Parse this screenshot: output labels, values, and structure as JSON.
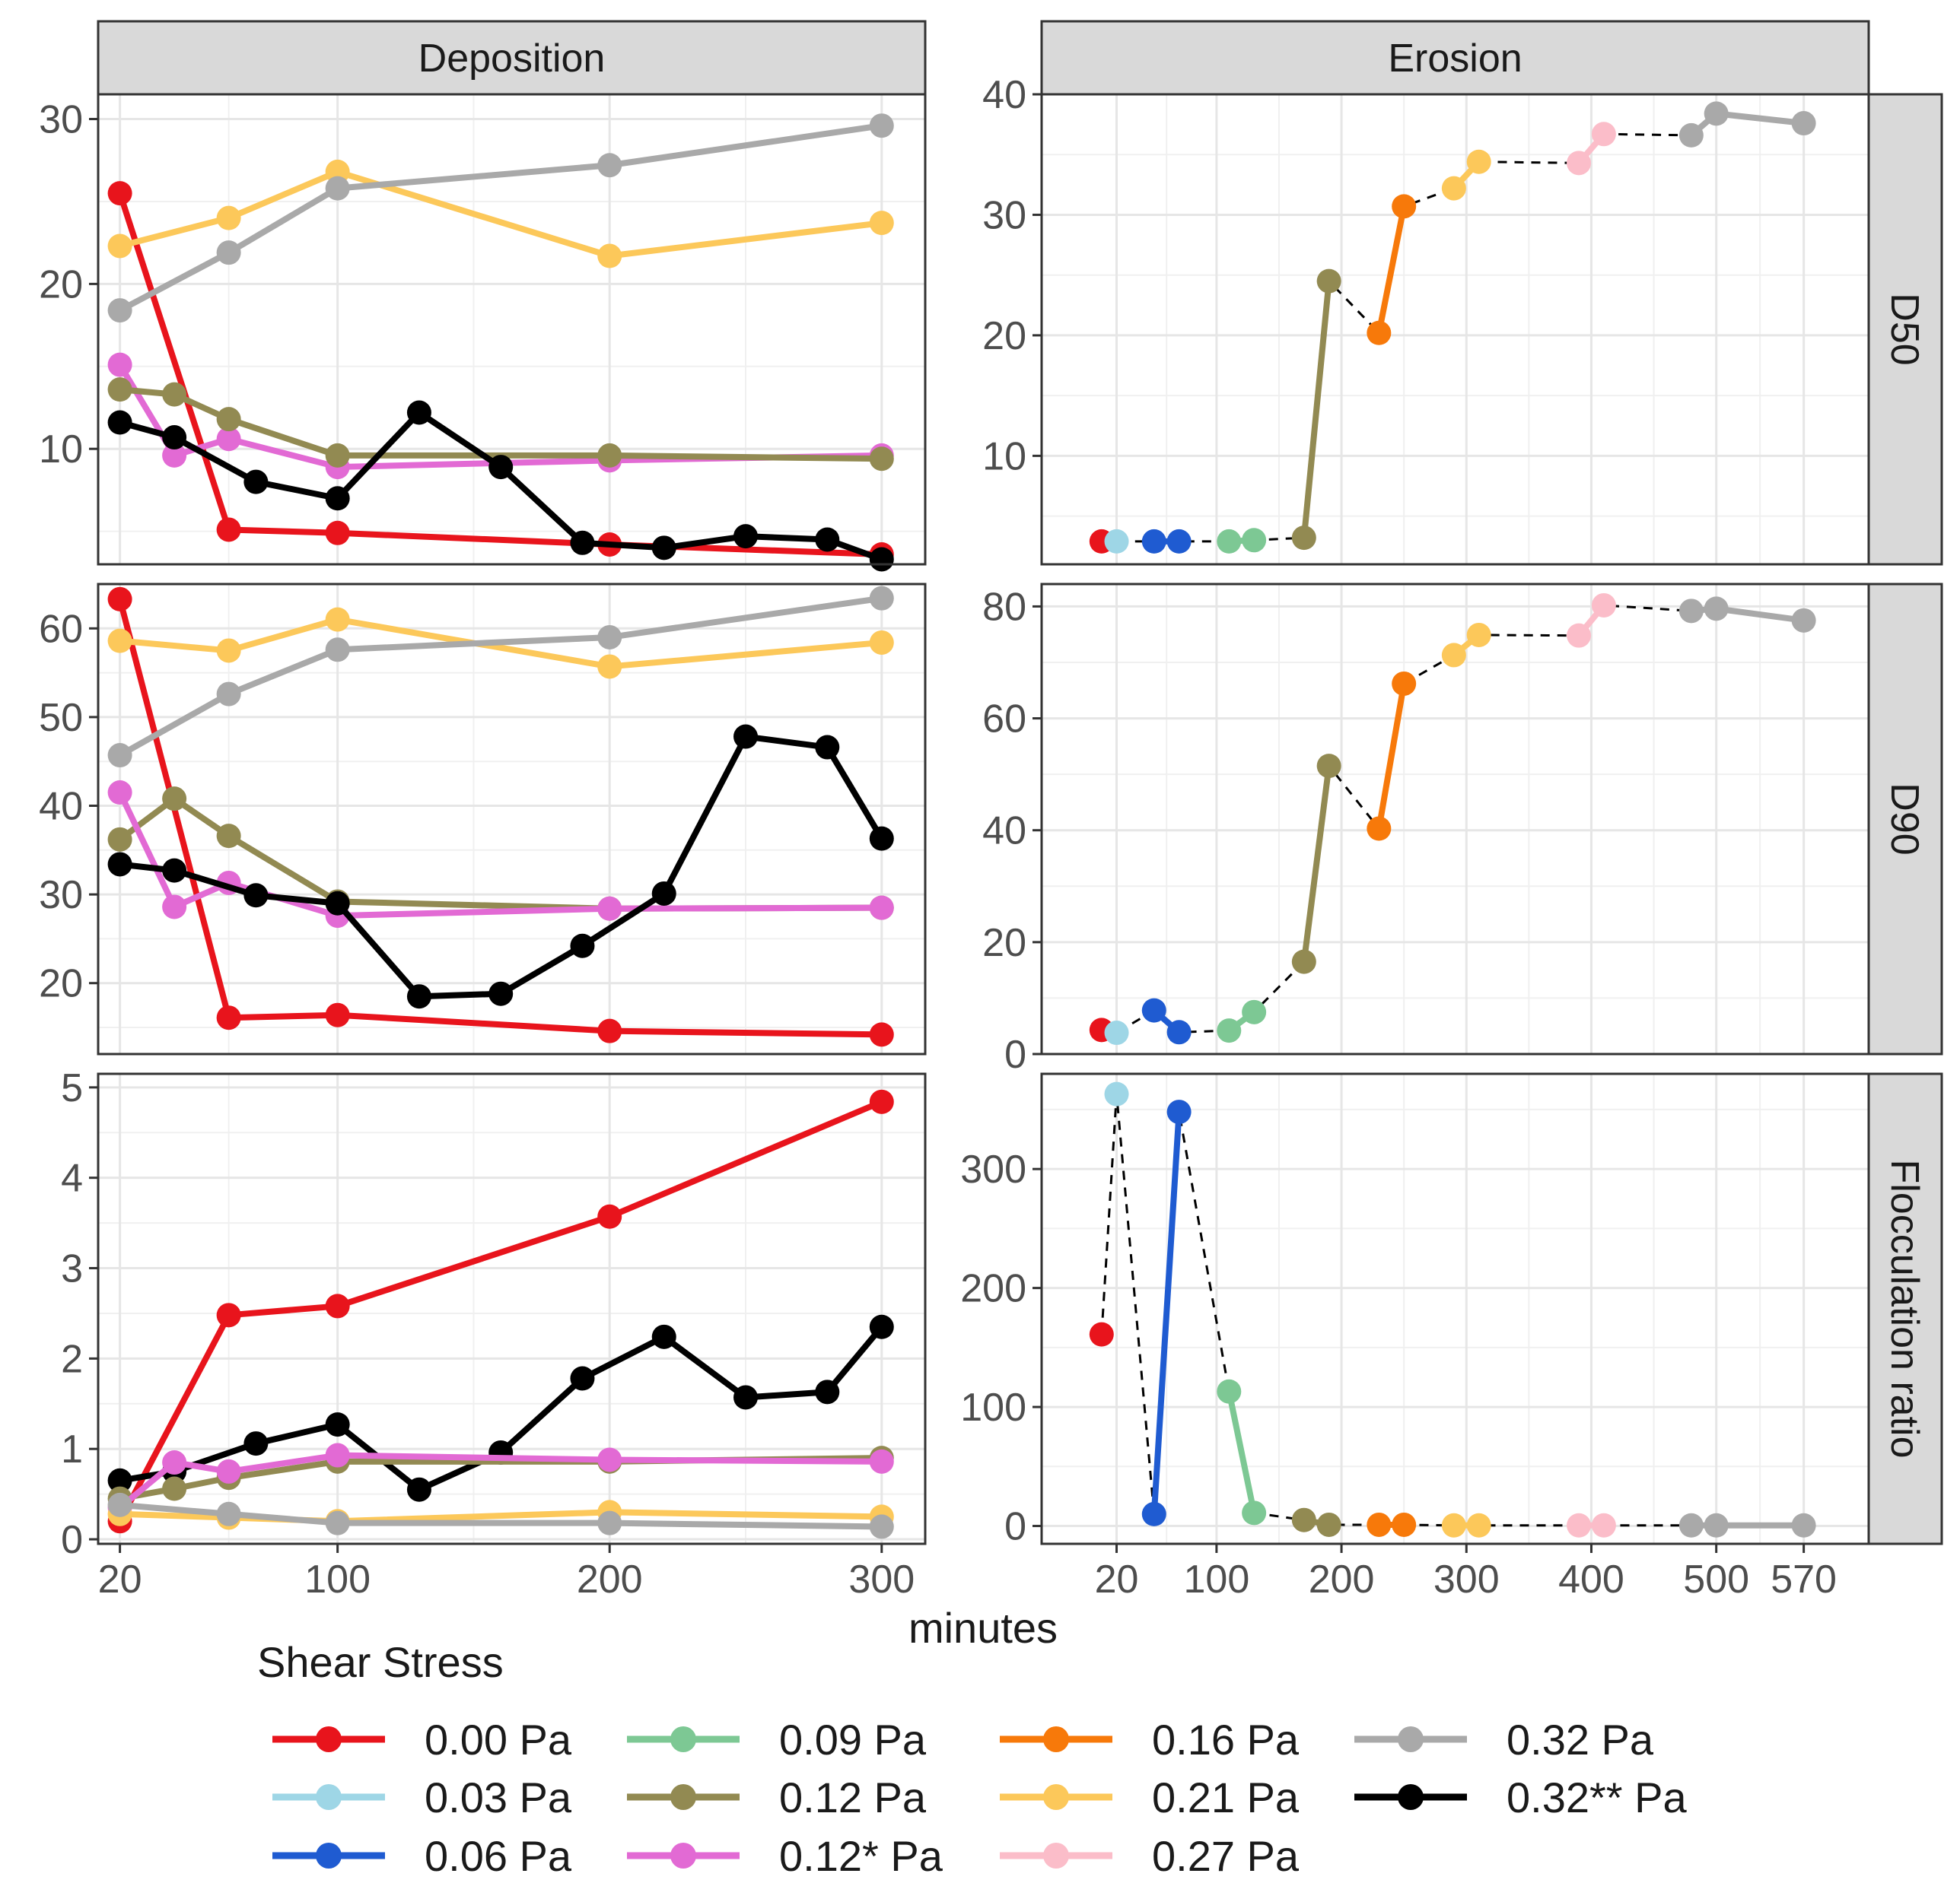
{
  "chart_data": {
    "type": "line",
    "xlabel": "minutes",
    "columns": [
      "Deposition",
      "Erosion"
    ],
    "rows": [
      "D50",
      "D90",
      "Flocculation ratio"
    ],
    "legend": {
      "title": "Shear Stress",
      "entries": [
        {
          "label": "0.00 Pa",
          "color": "#e8141c"
        },
        {
          "label": "0.03 Pa",
          "color": "#9ed6e6"
        },
        {
          "label": "0.06 Pa",
          "color": "#1f5bd1"
        },
        {
          "label": "0.09 Pa",
          "color": "#7dc894"
        },
        {
          "label": "0.12 Pa",
          "color": "#928a52"
        },
        {
          "label": "0.12* Pa",
          "color": "#e26ad4"
        },
        {
          "label": "0.16 Pa",
          "color": "#f7790a"
        },
        {
          "label": "0.21 Pa",
          "color": "#fcc85a"
        },
        {
          "label": "0.27 Pa",
          "color": "#fbbdc9"
        },
        {
          "label": "0.32 Pa",
          "color": "#a9a9a9"
        },
        {
          "label": "0.32** Pa",
          "color": "#000000"
        }
      ]
    },
    "deposition": {
      "xlim": [
        12,
        316
      ],
      "xticks": [
        20,
        100,
        200,
        300
      ],
      "panels": {
        "D50": {
          "ylim": [
            3.0,
            31.5
          ],
          "yticks": [
            10,
            20,
            30
          ],
          "series": [
            {
              "name": "0.00 Pa",
              "x": [
                20,
                60,
                100,
                200,
                300
              ],
              "y": [
                25.5,
                5.1,
                4.9,
                4.2,
                3.6
              ]
            },
            {
              "name": "0.21 Pa",
              "x": [
                20,
                60,
                100,
                200,
                300
              ],
              "y": [
                22.3,
                24.0,
                26.8,
                21.7,
                23.7
              ]
            },
            {
              "name": "0.32 Pa",
              "x": [
                20,
                60,
                100,
                200,
                300
              ],
              "y": [
                18.4,
                21.9,
                25.8,
                27.2,
                29.6
              ]
            },
            {
              "name": "0.12* Pa",
              "x": [
                20,
                40,
                60,
                100,
                200,
                300
              ],
              "y": [
                15.1,
                9.6,
                10.6,
                8.9,
                9.3,
                9.6
              ]
            },
            {
              "name": "0.12 Pa",
              "x": [
                20,
                40,
                60,
                100,
                200,
                300
              ],
              "y": [
                13.6,
                13.3,
                11.8,
                9.6,
                9.6,
                9.4
              ]
            },
            {
              "name": "0.32** Pa",
              "x": [
                20,
                40,
                70,
                100,
                130,
                160,
                190,
                220,
                250,
                280,
                300
              ],
              "y": [
                11.6,
                10.7,
                8.0,
                7.0,
                12.2,
                8.9,
                4.3,
                4.0,
                4.7,
                4.5,
                3.3
              ]
            }
          ]
        },
        "D90": {
          "ylim": [
            12,
            65
          ],
          "yticks": [
            20,
            30,
            40,
            50,
            60
          ],
          "series": [
            {
              "name": "0.00 Pa",
              "x": [
                20,
                60,
                100,
                200,
                300
              ],
              "y": [
                63.3,
                16.1,
                16.4,
                14.6,
                14.2
              ]
            },
            {
              "name": "0.21 Pa",
              "x": [
                20,
                60,
                100,
                200,
                300
              ],
              "y": [
                58.6,
                57.5,
                61.0,
                55.7,
                58.4
              ]
            },
            {
              "name": "0.32 Pa",
              "x": [
                20,
                60,
                100,
                200,
                300
              ],
              "y": [
                45.7,
                52.6,
                57.6,
                59.0,
                63.4
              ]
            },
            {
              "name": "0.12 Pa",
              "x": [
                20,
                40,
                60,
                100,
                200,
                300
              ],
              "y": [
                36.2,
                40.8,
                36.6,
                29.2,
                28.4,
                28.5
              ]
            },
            {
              "name": "0.12* Pa",
              "x": [
                20,
                40,
                60,
                100,
                200,
                300
              ],
              "y": [
                41.5,
                28.6,
                31.3,
                27.6,
                28.4,
                28.5
              ]
            },
            {
              "name": "0.32** Pa",
              "x": [
                20,
                40,
                70,
                100,
                130,
                160,
                190,
                220,
                250,
                280,
                300
              ],
              "y": [
                33.4,
                32.7,
                29.9,
                29.0,
                18.5,
                18.8,
                24.2,
                30.1,
                47.8,
                46.6,
                36.3
              ]
            }
          ]
        },
        "Flocculation ratio": {
          "ylim": [
            -0.05,
            5.15
          ],
          "yticks": [
            0,
            1,
            2,
            3,
            4,
            5
          ],
          "series": [
            {
              "name": "0.00 Pa",
              "x": [
                20,
                60,
                100,
                200,
                300
              ],
              "y": [
                0.2,
                2.48,
                2.58,
                3.57,
                4.84
              ]
            },
            {
              "name": "0.32** Pa",
              "x": [
                20,
                40,
                70,
                100,
                130,
                160,
                190,
                220,
                250,
                280,
                300
              ],
              "y": [
                0.65,
                0.75,
                1.06,
                1.27,
                0.55,
                0.96,
                1.78,
                2.24,
                1.57,
                1.63,
                2.35
              ]
            },
            {
              "name": "0.12 Pa",
              "x": [
                20,
                40,
                60,
                100,
                200,
                300
              ],
              "y": [
                0.45,
                0.56,
                0.68,
                0.86,
                0.86,
                0.9
              ]
            },
            {
              "name": "0.12* Pa",
              "x": [
                20,
                40,
                60,
                100,
                200,
                300
              ],
              "y": [
                0.35,
                0.85,
                0.75,
                0.93,
                0.88,
                0.86
              ]
            },
            {
              "name": "0.21 Pa",
              "x": [
                20,
                60,
                100,
                200,
                300
              ],
              "y": [
                0.28,
                0.24,
                0.2,
                0.3,
                0.25
              ]
            },
            {
              "name": "0.32 Pa",
              "x": [
                20,
                60,
                100,
                200,
                300
              ],
              "y": [
                0.38,
                0.28,
                0.18,
                0.18,
                0.14
              ]
            }
          ]
        }
      }
    },
    "erosion": {
      "xlim": [
        -40,
        622
      ],
      "xticks": [
        {
          "label": "20",
          "at": 20
        },
        {
          "label": "100",
          "at": 100
        },
        {
          "label": "200",
          "at": 200
        },
        {
          "label": "300",
          "at": 300
        },
        {
          "label": "400",
          "at": 400
        },
        {
          "label": "500",
          "at": 500
        },
        {
          "label": "570",
          "at": 570
        }
      ],
      "panels": {
        "D50": {
          "ylim": [
            1.0,
            40.0
          ],
          "yticks": [
            10,
            20,
            30,
            40
          ],
          "series": [
            {
              "name": "0.00 Pa",
              "x": [
                8
              ],
              "y": [
                2.9
              ]
            },
            {
              "name": "0.03 Pa",
              "x": [
                20
              ],
              "y": [
                2.9
              ]
            },
            {
              "name": "0.06 Pa",
              "x": [
                50,
                70
              ],
              "y": [
                2.9,
                2.9
              ]
            },
            {
              "name": "0.09 Pa",
              "x": [
                110,
                130
              ],
              "y": [
                2.9,
                3.0
              ]
            },
            {
              "name": "0.12 Pa",
              "x": [
                170,
                190
              ],
              "y": [
                3.2,
                24.5
              ]
            },
            {
              "name": "0.16 Pa",
              "x": [
                230,
                250
              ],
              "y": [
                20.2,
                30.7
              ]
            },
            {
              "name": "0.21 Pa",
              "x": [
                290,
                310
              ],
              "y": [
                32.2,
                34.4
              ]
            },
            {
              "name": "0.27 Pa",
              "x": [
                390,
                410
              ],
              "y": [
                34.3,
                36.7
              ]
            },
            {
              "name": "0.32 Pa",
              "x": [
                480,
                500,
                570
              ],
              "y": [
                36.6,
                38.4,
                37.6
              ]
            }
          ]
        },
        "D90": {
          "ylim": [
            0,
            84
          ],
          "yticks": [
            0,
            20,
            40,
            60,
            80
          ],
          "series": [
            {
              "name": "0.00 Pa",
              "x": [
                8
              ],
              "y": [
                4.3
              ]
            },
            {
              "name": "0.03 Pa",
              "x": [
                20
              ],
              "y": [
                3.8
              ]
            },
            {
              "name": "0.06 Pa",
              "x": [
                50,
                70
              ],
              "y": [
                7.8,
                3.9
              ]
            },
            {
              "name": "0.09 Pa",
              "x": [
                110,
                130
              ],
              "y": [
                4.2,
                7.5
              ]
            },
            {
              "name": "0.12 Pa",
              "x": [
                170,
                190
              ],
              "y": [
                16.5,
                51.5
              ]
            },
            {
              "name": "0.16 Pa",
              "x": [
                230,
                250
              ],
              "y": [
                40.3,
                66.2
              ]
            },
            {
              "name": "0.21 Pa",
              "x": [
                290,
                310
              ],
              "y": [
                71.3,
                74.9
              ]
            },
            {
              "name": "0.27 Pa",
              "x": [
                390,
                410
              ],
              "y": [
                74.8,
                80.2
              ]
            },
            {
              "name": "0.32 Pa",
              "x": [
                480,
                500,
                570
              ],
              "y": [
                79.2,
                79.6,
                77.5
              ]
            }
          ]
        },
        "Flocculation ratio": {
          "ylim": [
            -15,
            380
          ],
          "yticks": [
            0,
            100,
            200,
            300
          ],
          "series": [
            {
              "name": "0.00 Pa",
              "x": [
                8
              ],
              "y": [
                161
              ]
            },
            {
              "name": "0.03 Pa",
              "x": [
                20
              ],
              "y": [
                363
              ]
            },
            {
              "name": "0.06 Pa",
              "x": [
                50,
                70
              ],
              "y": [
                10,
                348
              ]
            },
            {
              "name": "0.09 Pa",
              "x": [
                110,
                130
              ],
              "y": [
                113,
                11
              ]
            },
            {
              "name": "0.12 Pa",
              "x": [
                170,
                190
              ],
              "y": [
                5,
                1
              ]
            },
            {
              "name": "0.16 Pa",
              "x": [
                230,
                250
              ],
              "y": [
                1,
                1
              ]
            },
            {
              "name": "0.21 Pa",
              "x": [
                290,
                310
              ],
              "y": [
                0.5,
                0.5
              ]
            },
            {
              "name": "0.27 Pa",
              "x": [
                390,
                410
              ],
              "y": [
                0.5,
                0.5
              ]
            },
            {
              "name": "0.32 Pa",
              "x": [
                480,
                500,
                570
              ],
              "y": [
                0.5,
                0.5,
                0.5
              ]
            }
          ]
        }
      }
    }
  }
}
